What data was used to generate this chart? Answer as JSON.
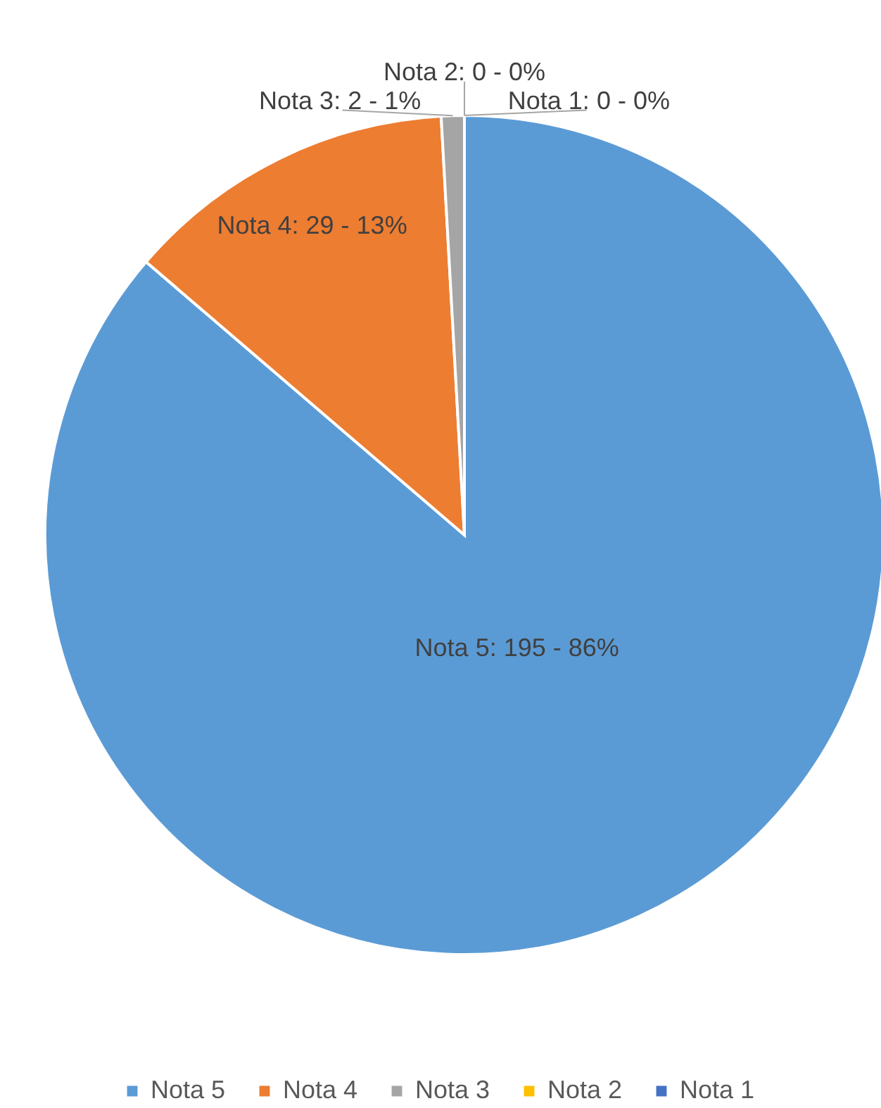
{
  "chart_data": {
    "type": "pie",
    "categories": [
      "Nota 5",
      "Nota 4",
      "Nota 3",
      "Nota 2",
      "Nota 1"
    ],
    "values": [
      195,
      29,
      2,
      0,
      0
    ],
    "colors": [
      "#5b9bd5",
      "#ed7d31",
      "#a5a5a5",
      "#ffc000",
      "#4472c4"
    ],
    "value_labels": [
      "Nota 5: 195 - 86%",
      "Nota 4: 29 - 13%",
      "Nota 3: 2 - 1%",
      "Nota 2: 0 - 0%",
      "Nota 1: 0 - 0%"
    ],
    "legend": "bottom"
  }
}
